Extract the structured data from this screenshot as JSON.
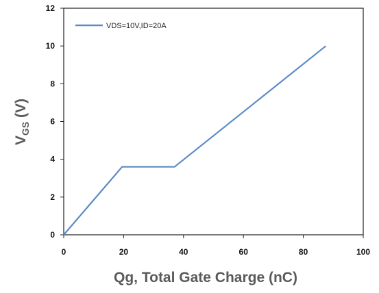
{
  "chart_data": {
    "type": "line",
    "title": "",
    "xlabel": "Qg, Total Gate Charge (nC)",
    "ylabel": {
      "main": "V",
      "sub": "GS",
      "unit": " (V)"
    },
    "xlim": [
      0,
      100
    ],
    "ylim": [
      0,
      12
    ],
    "xticks": [
      "0",
      "20",
      "40",
      "60",
      "80",
      "100"
    ],
    "yticks": [
      "0",
      "2",
      "4",
      "6",
      "8",
      "10",
      "12"
    ],
    "grid": false,
    "legend_position": "top-left",
    "series": [
      {
        "name": "VDS=10V,ID=20A",
        "color": "#5b8ac6",
        "x": [
          0,
          19.5,
          37,
          87.5
        ],
        "y": [
          0,
          3.6,
          3.6,
          10
        ]
      }
    ]
  }
}
